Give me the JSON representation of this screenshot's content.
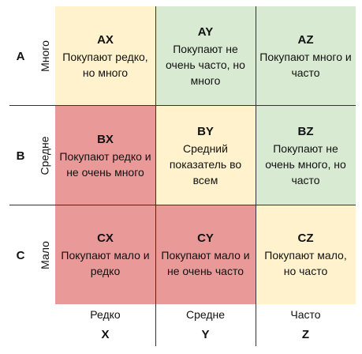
{
  "rows": [
    {
      "letter": "A",
      "label": "Много"
    },
    {
      "letter": "B",
      "label": "Средне"
    },
    {
      "letter": "C",
      "label": "Мало"
    }
  ],
  "columns": [
    {
      "label": "Редко",
      "letter": "X"
    },
    {
      "label": "Средне",
      "letter": "Y"
    },
    {
      "label": "Часто",
      "letter": "Z"
    }
  ],
  "cells": [
    [
      {
        "code": "AX",
        "text": "Покупают редко, но много",
        "color": "#fff2cc"
      },
      {
        "code": "AY",
        "text": "Покупают не очень часто, но много",
        "color": "#d9ead3"
      },
      {
        "code": "AZ",
        "text": "Покупают много и часто",
        "color": "#d9ead3"
      }
    ],
    [
      {
        "code": "BX",
        "text": "Покупают редко и не очень много",
        "color": "#ea9999"
      },
      {
        "code": "BY",
        "text": "Средний показатель во всем",
        "color": "#fff2cc"
      },
      {
        "code": "BZ",
        "text": "Покупают не очень много, но часто",
        "color": "#d9ead3"
      }
    ],
    [
      {
        "code": "CX",
        "text": "Покупают мало и редко",
        "color": "#ea9999"
      },
      {
        "code": "CY",
        "text": "Покупают мало и не очень часто",
        "color": "#ea9999"
      },
      {
        "code": "CZ",
        "text": "Покупают мало, но часто",
        "color": "#fff2cc"
      }
    ]
  ]
}
